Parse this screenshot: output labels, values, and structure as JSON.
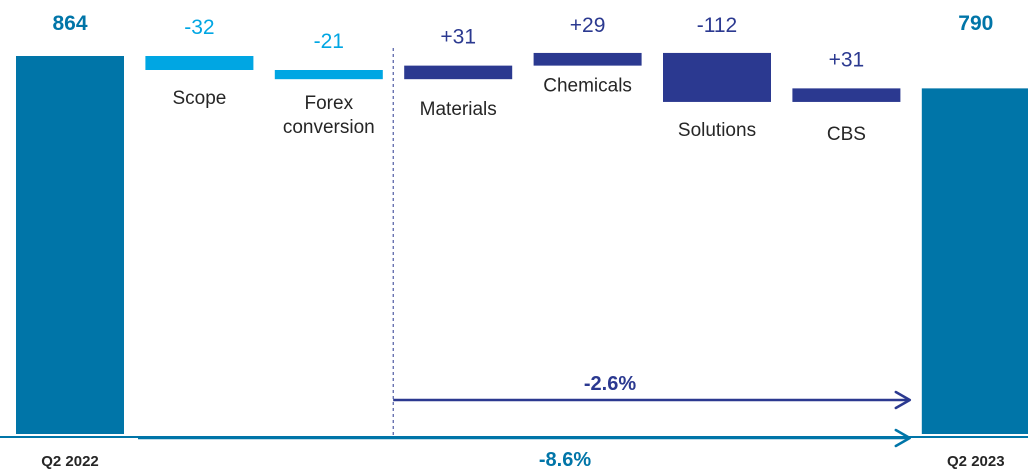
{
  "chart_data": {
    "type": "bar",
    "subtype": "waterfall",
    "title": "",
    "xlabel": "",
    "ylabel": "",
    "grid": false,
    "categories": [
      {
        "label": "Q2 2022",
        "value": 864,
        "value_label": "864",
        "kind": "total"
      },
      {
        "label": "Scope",
        "value": -32,
        "value_label": "-32",
        "kind": "external"
      },
      {
        "label": "Forex\nconversion",
        "value": -21,
        "value_label": "-21",
        "kind": "external"
      },
      {
        "label": "Materials",
        "value": 31,
        "value_label": "+31",
        "kind": "segment"
      },
      {
        "label": "Chemicals",
        "value": 29,
        "value_label": "+29",
        "kind": "segment"
      },
      {
        "label": "Solutions",
        "value": -112,
        "value_label": "-112",
        "kind": "segment"
      },
      {
        "label": "CBS",
        "value": 31,
        "value_label": "+31",
        "kind": "segment"
      },
      {
        "label": "Q2 2023",
        "value": 790,
        "value_label": "790",
        "kind": "total"
      }
    ],
    "growth_arrows": [
      {
        "label": "-2.6%",
        "from": "Materials",
        "to": "Q2 2023"
      },
      {
        "label": "-8.6%",
        "from": "Q2 2022",
        "to": "Q2 2023"
      }
    ],
    "colors": {
      "total": "#0075A8",
      "external": "#00A6E3",
      "segment": "#2B3990"
    }
  }
}
